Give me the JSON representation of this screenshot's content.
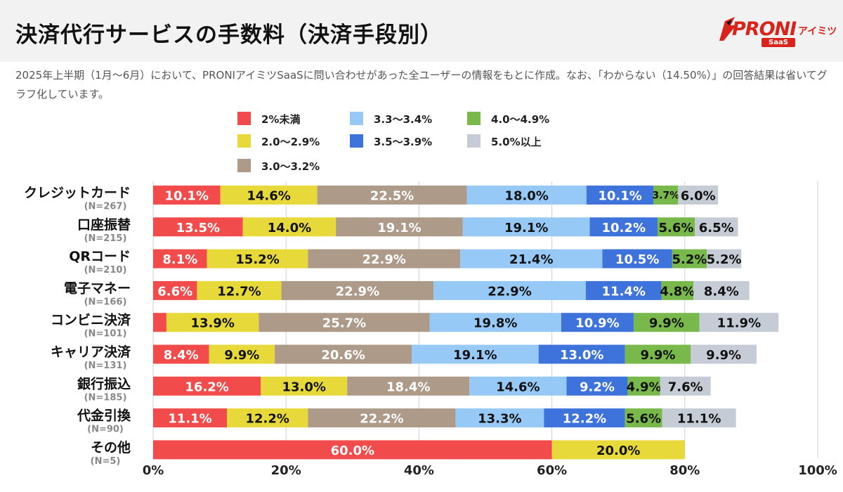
{
  "header": {
    "title": "決済代行サービスの手数料（決済手段別）",
    "logo": {
      "brand": "PRONI",
      "kana": "アイミツ",
      "sub": "SaaS"
    }
  },
  "note": "2025年上半期（1月〜6月）において、PRONIアイミツSaaSに問い合わせがあった全ユーザーの情報をもとに作成。なお、「わからない（14.50%）」の回答結果は省いてグラフ化しています。",
  "colors": {
    "2%未満": "#f24b4b",
    "2.0〜2.9%": "#e8d93a",
    "3.0〜3.2%": "#ad9a89",
    "3.3〜3.4%": "#97c9f7",
    "3.5〜3.9%": "#3f73dc",
    "4.0〜4.9%": "#79b94c",
    "5.0%以上": "#c5ccd5"
  },
  "chart_data": {
    "type": "bar",
    "orientation": "horizontal",
    "stacked": true,
    "title": "決済代行サービスの手数料（決済手段別）",
    "xlim": [
      0,
      100
    ],
    "x_ticks": [
      "0%",
      "20%",
      "40%",
      "60%",
      "80%",
      "100%"
    ],
    "grid": true,
    "legend_position": "top",
    "categories": [
      {
        "name": "クレジットカード",
        "n": "(N=267)"
      },
      {
        "name": "口座振替",
        "n": "(N=215)"
      },
      {
        "name": "QRコード",
        "n": "(N=210)"
      },
      {
        "name": "電子マネー",
        "n": "(N=166)"
      },
      {
        "name": "コンビニ決済",
        "n": "(N=101)"
      },
      {
        "name": "キャリア決済",
        "n": "(N=131)"
      },
      {
        "name": "銀行振込",
        "n": "(N=185)"
      },
      {
        "name": "代金引換",
        "n": "(N=90)"
      },
      {
        "name": "その他",
        "n": "(N=5)"
      }
    ],
    "series": [
      {
        "name": "2%未満",
        "values": [
          10.1,
          13.5,
          8.1,
          6.6,
          2.0,
          8.4,
          16.2,
          11.1,
          60.0
        ],
        "labels": [
          "10.1%",
          "13.5%",
          "8.1%",
          "6.6%",
          "",
          "8.4%",
          "16.2%",
          "11.1%",
          "60.0%"
        ]
      },
      {
        "name": "2.0〜2.9%",
        "values": [
          14.6,
          14.0,
          15.2,
          12.7,
          13.9,
          9.9,
          13.0,
          12.2,
          20.0
        ],
        "labels": [
          "14.6%",
          "14.0%",
          "15.2%",
          "12.7%",
          "13.9%",
          "9.9%",
          "13.0%",
          "12.2%",
          "20.0%"
        ]
      },
      {
        "name": "3.0〜3.2%",
        "values": [
          22.5,
          19.1,
          22.9,
          22.9,
          25.7,
          20.6,
          18.4,
          22.2,
          0
        ],
        "labels": [
          "22.5%",
          "19.1%",
          "22.9%",
          "22.9%",
          "25.7%",
          "20.6%",
          "18.4%",
          "22.2%",
          ""
        ]
      },
      {
        "name": "3.3〜3.4%",
        "values": [
          18.0,
          19.1,
          21.4,
          22.9,
          19.8,
          19.1,
          14.6,
          13.3,
          0
        ],
        "labels": [
          "18.0%",
          "19.1%",
          "21.4%",
          "22.9%",
          "19.8%",
          "19.1%",
          "14.6%",
          "13.3%",
          ""
        ]
      },
      {
        "name": "3.5〜3.9%",
        "values": [
          10.1,
          10.2,
          10.5,
          11.4,
          10.9,
          13.0,
          9.2,
          12.2,
          0
        ],
        "labels": [
          "10.1%",
          "10.2%",
          "10.5%",
          "11.4%",
          "10.9%",
          "13.0%",
          "9.2%",
          "12.2%",
          ""
        ]
      },
      {
        "name": "4.0〜4.9%",
        "values": [
          3.7,
          5.6,
          5.2,
          4.8,
          9.9,
          9.9,
          4.9,
          5.6,
          0
        ],
        "labels": [
          "3.7%",
          "5.6%",
          "5.2%",
          "4.8%",
          "9.9%",
          "9.9%",
          "4.9%",
          "5.6%",
          ""
        ]
      },
      {
        "name": "5.0%以上",
        "values": [
          6.0,
          6.5,
          5.2,
          8.4,
          11.9,
          9.9,
          7.6,
          11.1,
          0
        ],
        "labels": [
          "6.0%",
          "6.5%",
          "5.2%",
          "8.4%",
          "11.9%",
          "9.9%",
          "7.6%",
          "11.1%",
          ""
        ]
      }
    ]
  }
}
